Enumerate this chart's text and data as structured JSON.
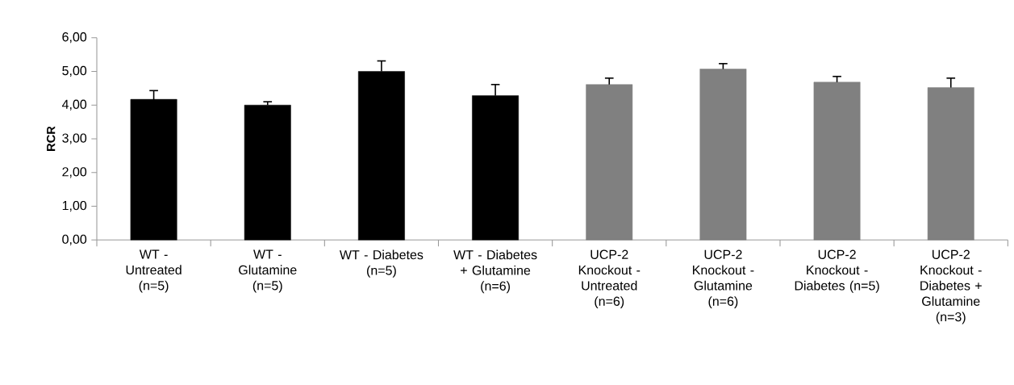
{
  "chart_data": {
    "type": "bar",
    "ylabel": "**RCR**",
    "categories": [
      "WT - Untreated (n=5)",
      "WT - Glutamine (n=5)",
      "WT - Diabetes (n=5)",
      "WT - Diabetes + Glutamine (n=6)",
      "UCP-2 Knockout - Untreated (n=6)",
      "UCP-2 Knockout - Glutamine (n=6)",
      "UCP-2 Knockout - Diabetes (n=5)",
      "UCP-2 Knockout - Diabetes + Glutamine (n=3)"
    ],
    "values": [
      4.17,
      4.0,
      5.0,
      4.28,
      4.61,
      5.07,
      4.68,
      4.52
    ],
    "errors": [
      0.26,
      0.1,
      0.31,
      0.33,
      0.19,
      0.16,
      0.17,
      0.28
    ],
    "colors": [
      "#000000",
      "#000000",
      "#000000",
      "#000000",
      "#808080",
      "#808080",
      "#808080",
      "#808080"
    ],
    "ylim": [
      0,
      6
    ],
    "yticks": [
      {
        "value": 0,
        "label": "0,00"
      },
      {
        "value": 1,
        "label": "1,00"
      },
      {
        "value": 2,
        "label": "2,00"
      },
      {
        "value": 3,
        "label": "3,00"
      },
      {
        "value": 4,
        "label": "4,00"
      },
      {
        "value": 5,
        "label": "5,00"
      },
      {
        "value": 6,
        "label": "6,00"
      }
    ],
    "grid": false
  }
}
